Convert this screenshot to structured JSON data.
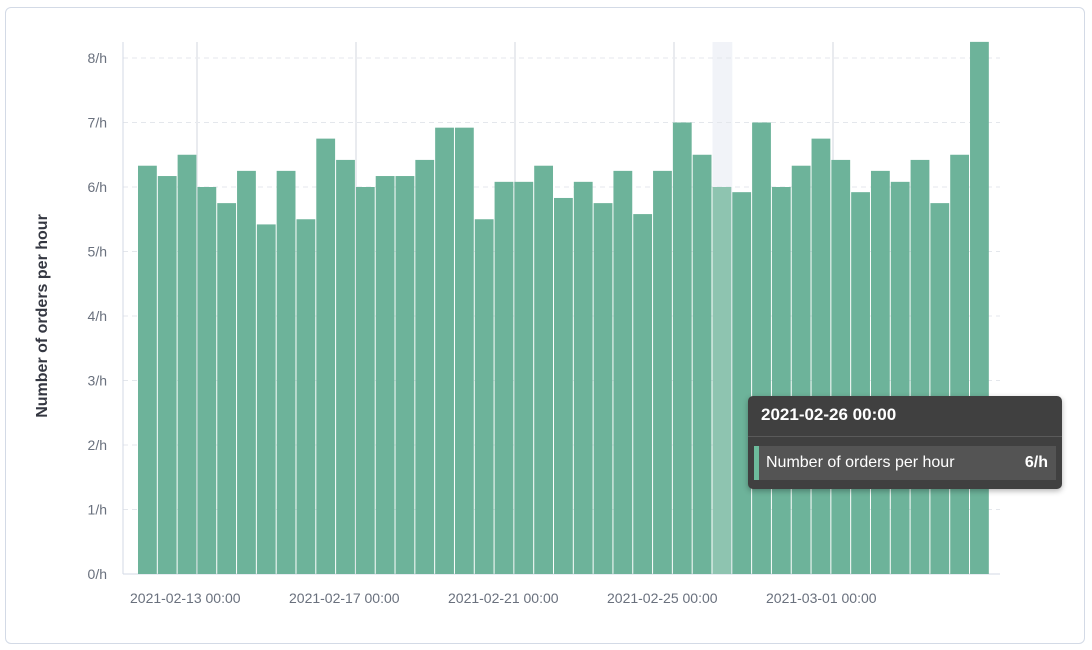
{
  "chart_data": {
    "type": "bar",
    "title": "",
    "xlabel": "",
    "ylabel": "Number of orders per hour",
    "ylim": [
      0,
      8.25
    ],
    "y_ticks": [
      "0/h",
      "1/h",
      "2/h",
      "3/h",
      "4/h",
      "5/h",
      "6/h",
      "7/h",
      "8/h"
    ],
    "x_ticks": [
      "2021-02-13 00:00",
      "2021-02-17 00:00",
      "2021-02-21 00:00",
      "2021-02-25 00:00",
      "2021-03-01 00:00"
    ],
    "bucket": "12h",
    "first_bucket": "2021-02-11 12:00",
    "grid": "horizontal dashed + vertical at x ticks",
    "bar_color": "#6db39a",
    "highlight_color": "#8ec4b0",
    "highlight_index": 29,
    "values": [
      6.33,
      6.17,
      6.5,
      6.0,
      5.75,
      6.25,
      5.42,
      6.25,
      5.5,
      6.75,
      6.42,
      6.0,
      6.17,
      6.17,
      6.42,
      6.92,
      6.92,
      5.5,
      6.08,
      6.08,
      6.33,
      5.83,
      6.08,
      5.75,
      6.25,
      5.58,
      6.25,
      7.0,
      6.5,
      6.0,
      5.92,
      7.0,
      6.0,
      6.33,
      6.75,
      6.42,
      5.92,
      6.25,
      6.08,
      6.42,
      5.75,
      6.5,
      8.25
    ]
  },
  "tooltip": {
    "title": "2021-02-26 00:00",
    "series": "Number of orders per hour",
    "value": "6/h"
  }
}
